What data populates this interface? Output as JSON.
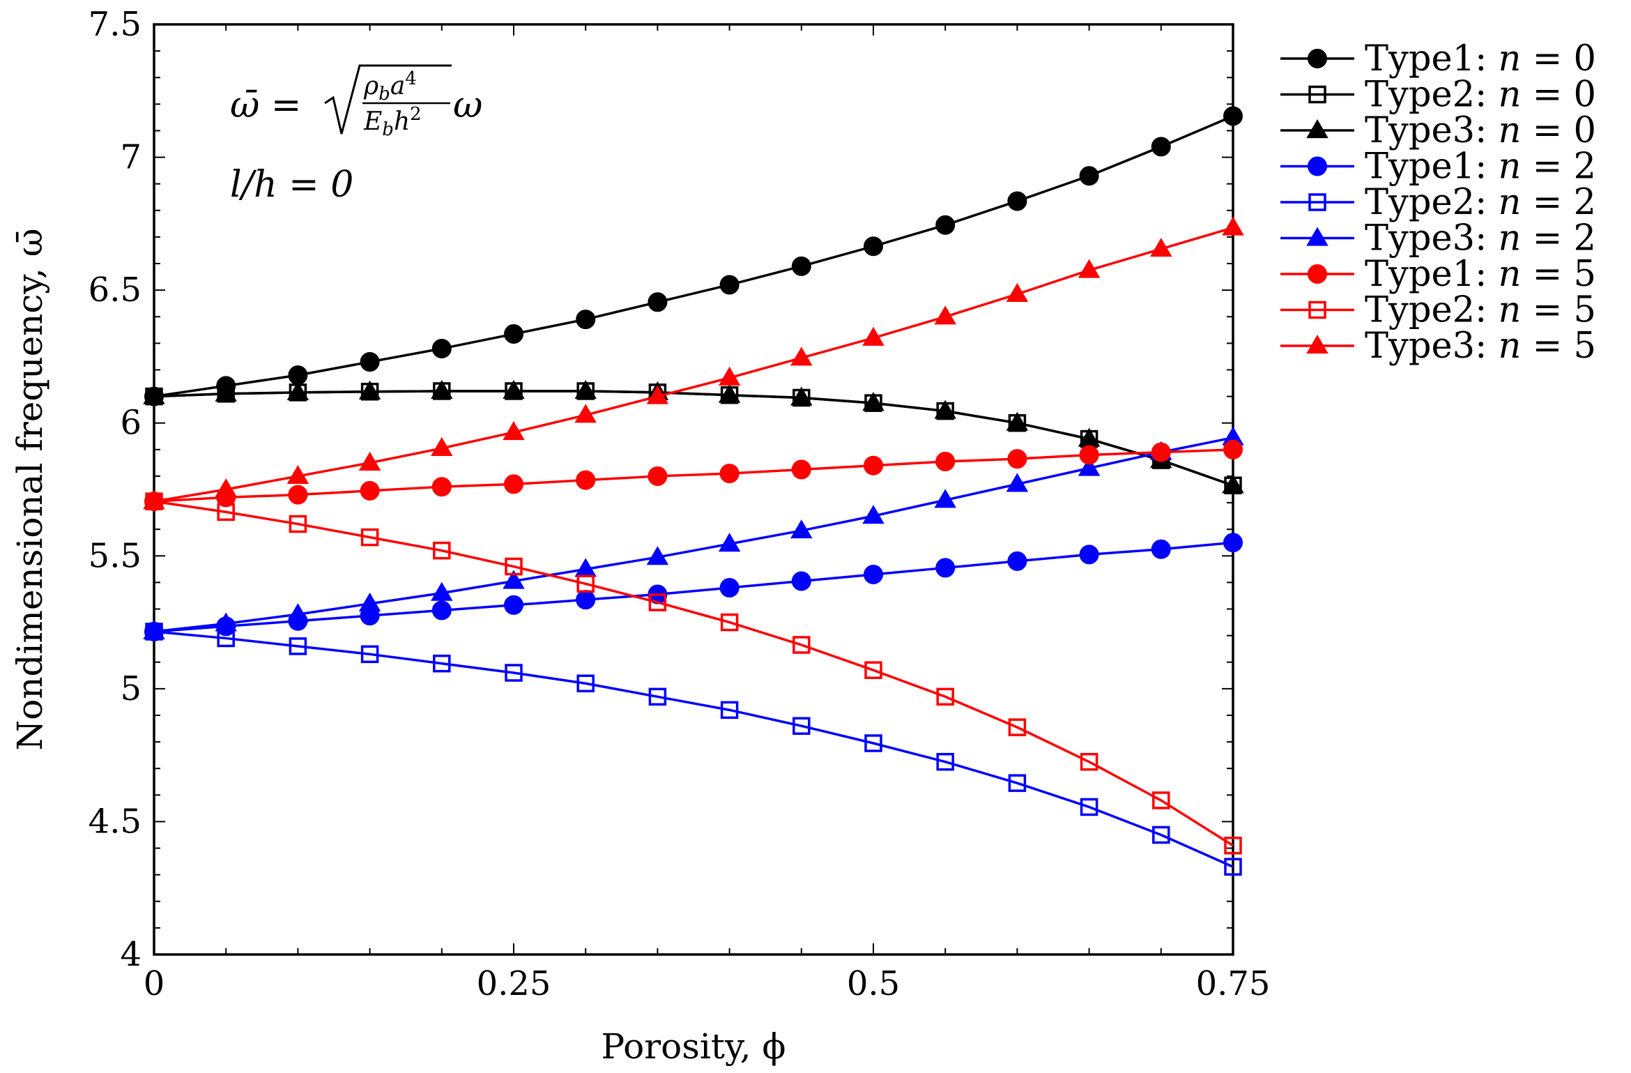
{
  "chart_data": {
    "type": "line",
    "title": "",
    "xlabel": "Porosity, ϕ",
    "ylabel": "Nondimensional frequency, ω̄",
    "xlim": [
      0,
      0.75
    ],
    "ylim": [
      4,
      7.5
    ],
    "xticks": [
      0,
      0.25,
      0.5,
      0.75
    ],
    "xtick_labels": [
      "0",
      "0.25",
      "0.5",
      "0.75"
    ],
    "yticks": [
      4,
      4.5,
      5,
      5.5,
      6,
      6.5,
      7,
      7.5
    ],
    "ytick_labels": [
      "4",
      "4.5",
      "5",
      "5.5",
      "6",
      "6.5",
      "7",
      "7.5"
    ],
    "minor_x_step": 0.05,
    "minor_y_step": 0.1,
    "grid": false,
    "legend_position": "outside-right",
    "annotations": {
      "formula": {
        "lhs": "ω̄ = ",
        "num": "ρ",
        "num_sub": "b",
        "num_rest": "a",
        "num_sup": "4",
        "den": "E",
        "den_sub": "b",
        "den_rest": "h",
        "den_sup": "2",
        "tail": "ω"
      },
      "ratio": "l/h = 0"
    },
    "x": [
      0,
      0.05,
      0.1,
      0.15,
      0.2,
      0.25,
      0.3,
      0.35,
      0.4,
      0.45,
      0.5,
      0.55,
      0.6,
      0.65,
      0.7,
      0.75
    ],
    "series": [
      {
        "name": "Type1: n = 0",
        "label_type": "Type1:",
        "label_var": "n",
        "label_eq": "= 0",
        "color": "#000000",
        "marker": "circle",
        "values": [
          6.1,
          6.14,
          6.18,
          6.23,
          6.28,
          6.335,
          6.39,
          6.455,
          6.52,
          6.59,
          6.665,
          6.745,
          6.835,
          6.93,
          7.04,
          7.155
        ]
      },
      {
        "name": "Type2: n = 0",
        "label_type": "Type2:",
        "label_var": "n",
        "label_eq": "= 0",
        "color": "#000000",
        "marker": "square-open",
        "values": [
          6.1,
          6.11,
          6.115,
          6.118,
          6.12,
          6.12,
          6.12,
          6.115,
          6.105,
          6.095,
          6.075,
          6.045,
          6.0,
          5.94,
          5.86,
          5.765
        ]
      },
      {
        "name": "Type3: n = 0",
        "label_type": "Type3:",
        "label_var": "n",
        "label_eq": "= 0",
        "color": "#000000",
        "marker": "triangle",
        "values": [
          6.1,
          6.11,
          6.115,
          6.118,
          6.12,
          6.12,
          6.12,
          6.115,
          6.105,
          6.095,
          6.075,
          6.045,
          6.0,
          5.94,
          5.86,
          5.765
        ]
      },
      {
        "name": "Type1: n = 2",
        "label_type": "Type1:",
        "label_var": "n",
        "label_eq": "= 2",
        "color": "#0000ff",
        "marker": "circle",
        "values": [
          5.215,
          5.235,
          5.255,
          5.275,
          5.295,
          5.315,
          5.335,
          5.355,
          5.38,
          5.405,
          5.43,
          5.455,
          5.48,
          5.505,
          5.525,
          5.55
        ]
      },
      {
        "name": "Type2: n = 2",
        "label_type": "Type2:",
        "label_var": "n",
        "label_eq": "= 2",
        "color": "#0000ff",
        "marker": "square-open",
        "values": [
          5.215,
          5.19,
          5.16,
          5.13,
          5.095,
          5.06,
          5.02,
          4.97,
          4.92,
          4.86,
          4.795,
          4.725,
          4.645,
          4.555,
          4.45,
          4.33
        ]
      },
      {
        "name": "Type3: n = 2",
        "label_type": "Type3:",
        "label_var": "n",
        "label_eq": "= 2",
        "color": "#0000ff",
        "marker": "triangle",
        "values": [
          5.215,
          5.245,
          5.28,
          5.32,
          5.36,
          5.405,
          5.45,
          5.495,
          5.545,
          5.595,
          5.65,
          5.71,
          5.77,
          5.83,
          5.89,
          5.945
        ]
      },
      {
        "name": "Type1: n = 5",
        "label_type": "Type1:",
        "label_var": "n",
        "label_eq": "= 5",
        "color": "#ff0000",
        "marker": "circle",
        "values": [
          5.705,
          5.72,
          5.73,
          5.745,
          5.76,
          5.77,
          5.785,
          5.8,
          5.81,
          5.825,
          5.84,
          5.855,
          5.865,
          5.88,
          5.89,
          5.9
        ]
      },
      {
        "name": "Type2: n = 5",
        "label_type": "Type2:",
        "label_var": "n",
        "label_eq": "= 5",
        "color": "#ff0000",
        "marker": "square-open",
        "values": [
          5.705,
          5.665,
          5.62,
          5.57,
          5.52,
          5.46,
          5.395,
          5.325,
          5.25,
          5.165,
          5.07,
          4.97,
          4.855,
          4.725,
          4.58,
          4.41
        ]
      },
      {
        "name": "Type3: n = 5",
        "label_type": "Type3:",
        "label_var": "n",
        "label_eq": "= 5",
        "color": "#ff0000",
        "marker": "triangle",
        "values": [
          5.705,
          5.75,
          5.8,
          5.85,
          5.905,
          5.965,
          6.03,
          6.1,
          6.17,
          6.245,
          6.32,
          6.4,
          6.485,
          6.575,
          6.655,
          6.735
        ]
      }
    ]
  }
}
